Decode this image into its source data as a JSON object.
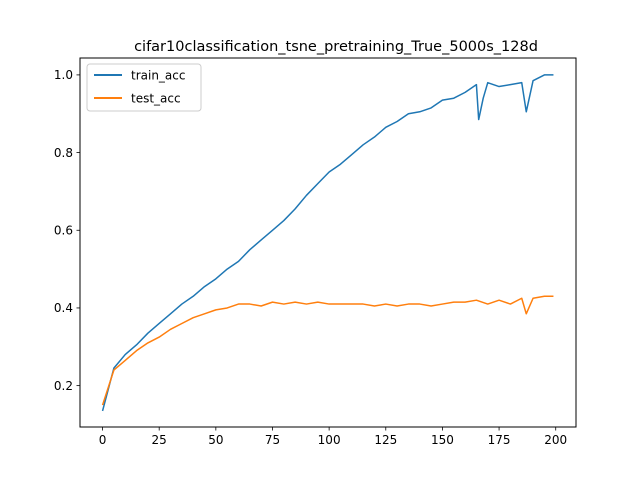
{
  "chart_data": {
    "type": "line",
    "title": "cifar10classification_tsne_pretraining_True_5000s_128d",
    "xlabel": "",
    "ylabel": "",
    "xlim": [
      -9.95,
      208.95
    ],
    "ylim": [
      0.0935,
      1.0435
    ],
    "x_ticks": [
      "0",
      "25",
      "50",
      "75",
      "100",
      "125",
      "150",
      "175",
      "200"
    ],
    "y_ticks": [
      "0.2",
      "0.4",
      "0.6",
      "0.8",
      "1.0"
    ],
    "grid": false,
    "legend_position": "upper left",
    "series": [
      {
        "name": "train_acc",
        "color": "#1f77b4",
        "x": [
          0,
          5,
          10,
          15,
          20,
          25,
          30,
          35,
          40,
          45,
          50,
          55,
          60,
          65,
          70,
          75,
          80,
          85,
          90,
          95,
          100,
          105,
          110,
          115,
          120,
          125,
          130,
          135,
          140,
          145,
          150,
          155,
          160,
          165,
          166,
          168,
          170,
          175,
          180,
          185,
          187,
          190,
          195,
          199
        ],
        "y": [
          0.135,
          0.245,
          0.28,
          0.305,
          0.335,
          0.36,
          0.385,
          0.41,
          0.43,
          0.455,
          0.475,
          0.5,
          0.52,
          0.55,
          0.575,
          0.6,
          0.625,
          0.655,
          0.69,
          0.72,
          0.75,
          0.77,
          0.795,
          0.82,
          0.84,
          0.865,
          0.88,
          0.9,
          0.905,
          0.915,
          0.935,
          0.94,
          0.955,
          0.975,
          0.885,
          0.94,
          0.98,
          0.97,
          0.975,
          0.98,
          0.905,
          0.985,
          1.0,
          1.0
        ]
      },
      {
        "name": "test_acc",
        "color": "#ff7f0e",
        "x": [
          0,
          5,
          10,
          15,
          20,
          25,
          30,
          35,
          40,
          45,
          50,
          55,
          60,
          65,
          70,
          75,
          80,
          85,
          90,
          95,
          100,
          105,
          110,
          115,
          120,
          125,
          130,
          135,
          140,
          145,
          150,
          155,
          160,
          165,
          170,
          175,
          180,
          185,
          187,
          190,
          195,
          199
        ],
        "y": [
          0.15,
          0.24,
          0.265,
          0.29,
          0.31,
          0.325,
          0.345,
          0.36,
          0.375,
          0.385,
          0.395,
          0.4,
          0.41,
          0.41,
          0.405,
          0.415,
          0.41,
          0.415,
          0.41,
          0.415,
          0.41,
          0.41,
          0.41,
          0.41,
          0.405,
          0.41,
          0.405,
          0.41,
          0.41,
          0.405,
          0.41,
          0.415,
          0.415,
          0.42,
          0.41,
          0.42,
          0.41,
          0.425,
          0.385,
          0.425,
          0.43,
          0.43
        ]
      }
    ]
  }
}
